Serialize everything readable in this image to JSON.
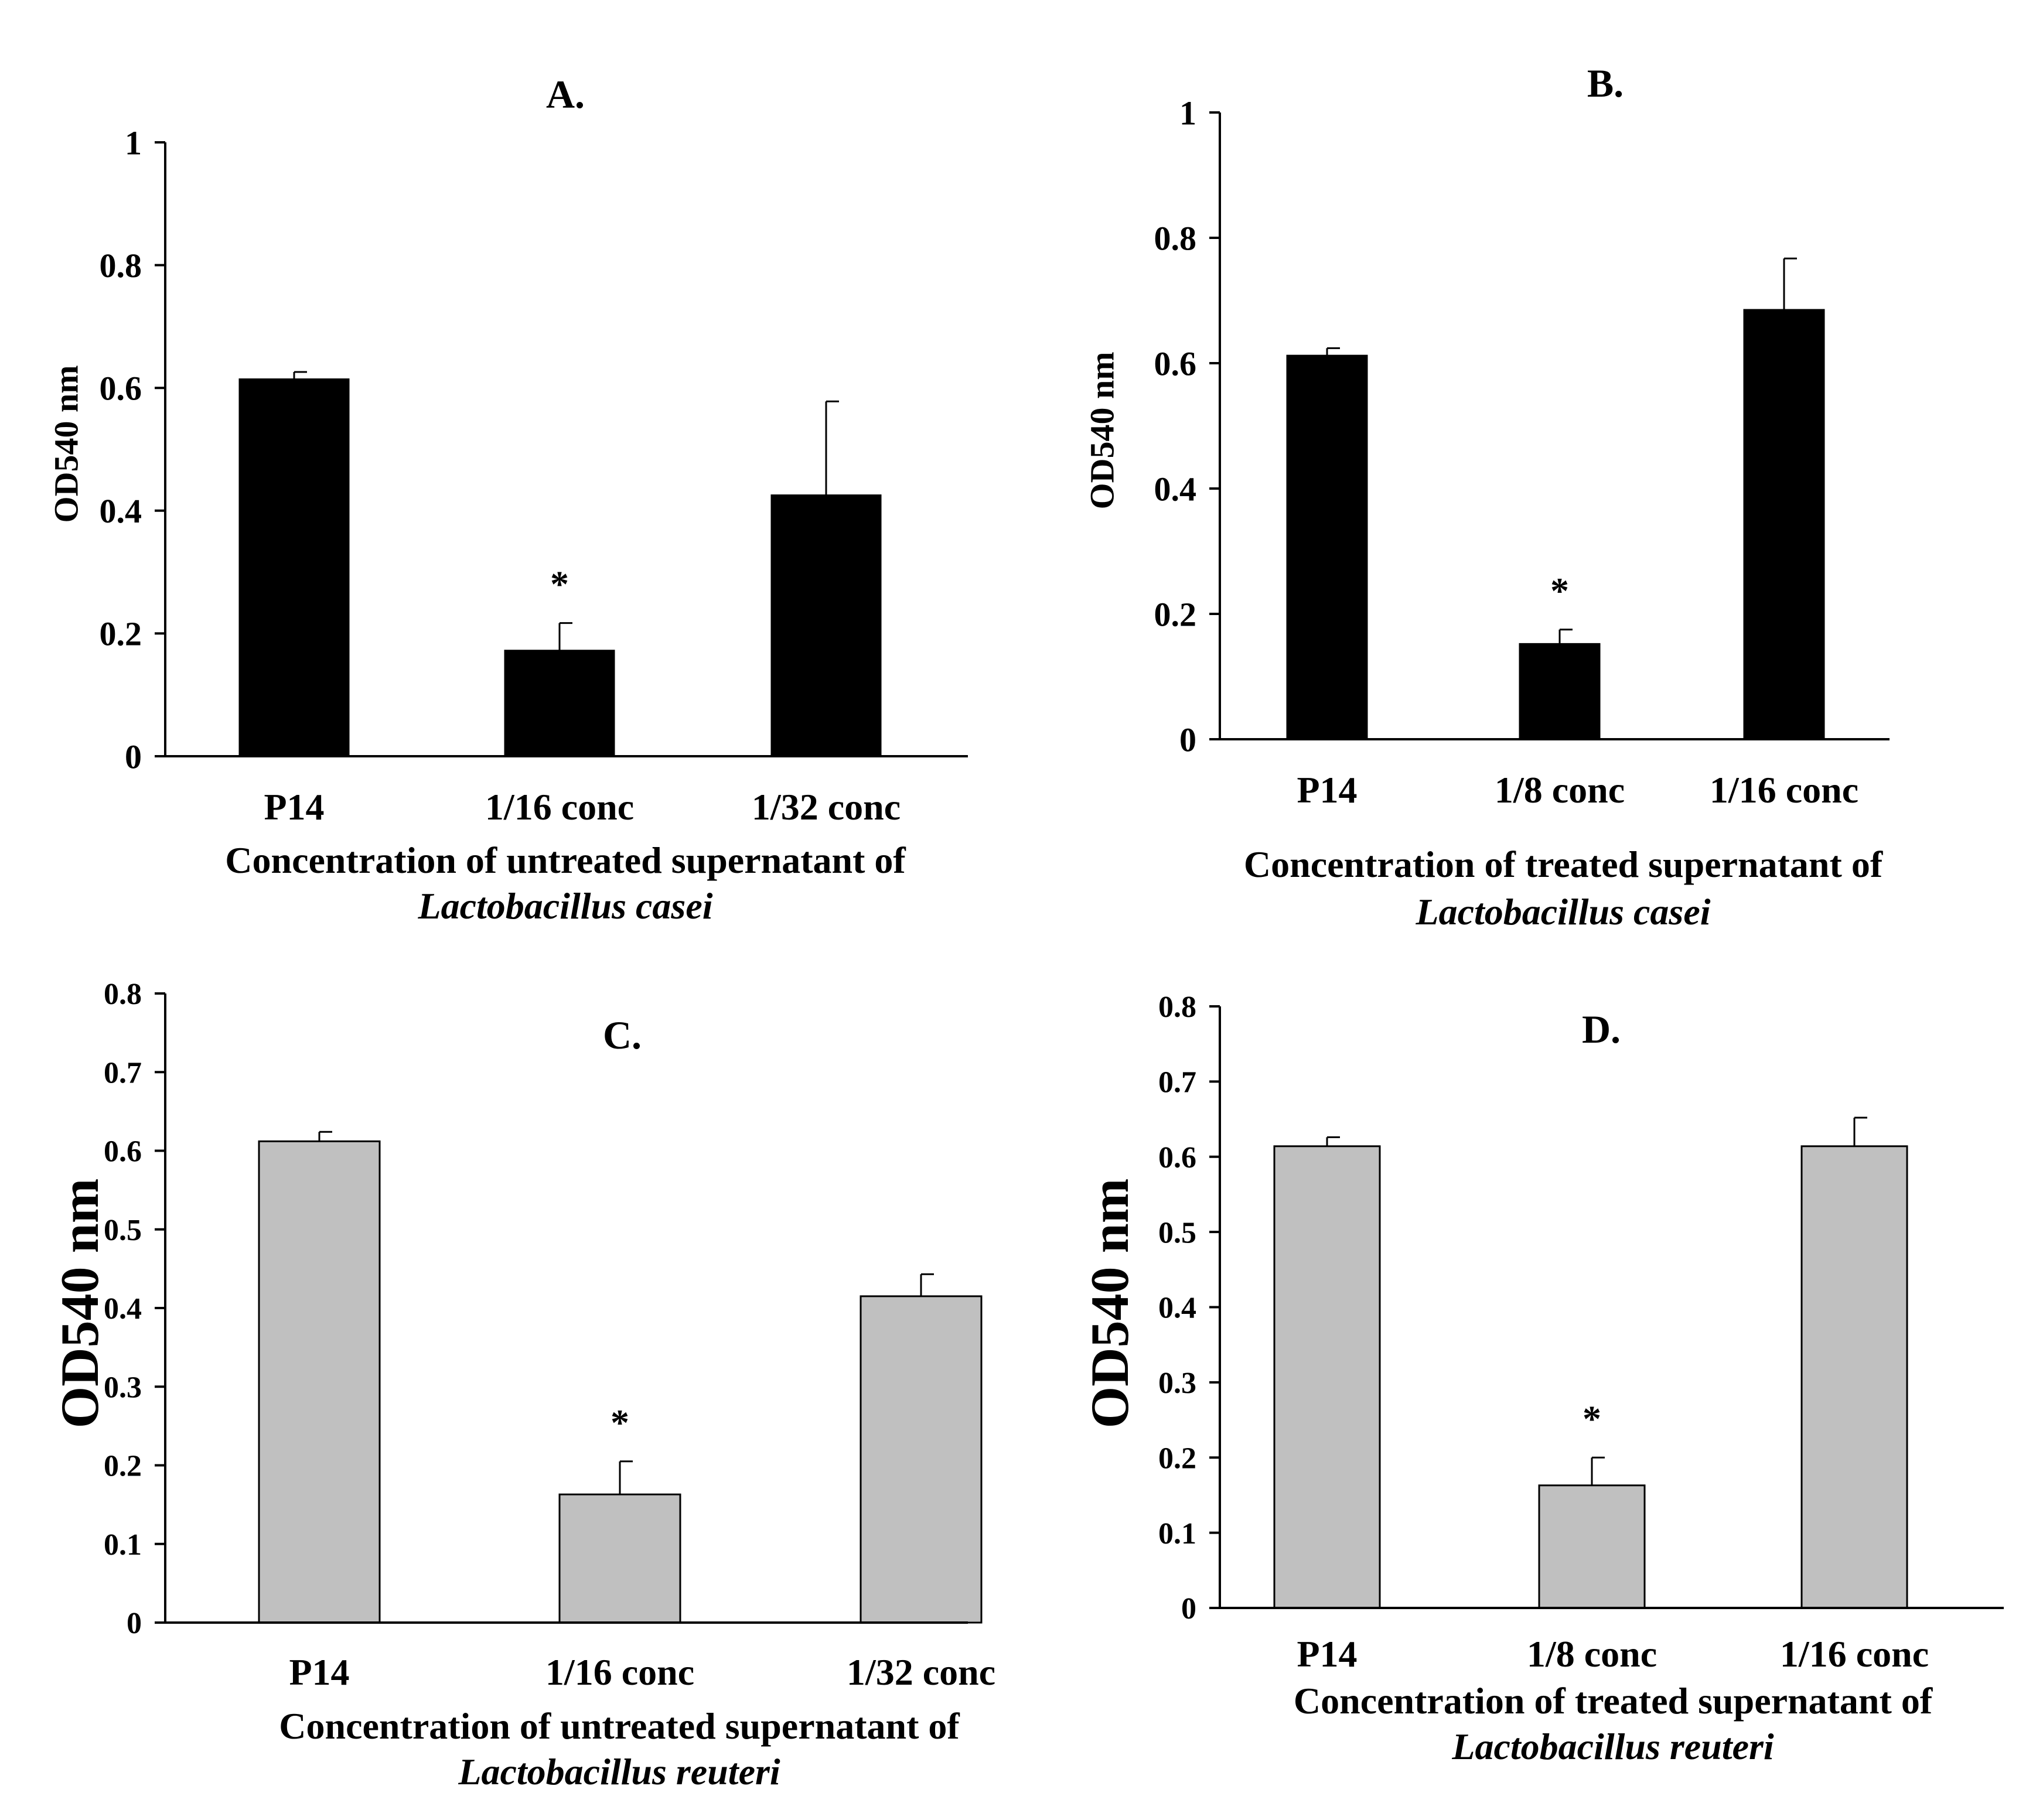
{
  "chart_data": [
    {
      "type": "bar",
      "panel": "A.",
      "title": "A.",
      "categories": [
        "P14",
        "1/16 conc",
        "1/32 conc"
      ],
      "values": [
        0.614,
        0.172,
        0.425
      ],
      "errors": [
        0.012,
        0.045,
        0.153
      ],
      "significance": [
        "",
        "*",
        ""
      ],
      "ylabel": "OD540 nm",
      "xlabel": "Concentration of untreated supernatant of",
      "xlabel_species": "Lactobacillus casei",
      "ylim": [
        0,
        1
      ],
      "yticks": [
        0,
        0.2,
        0.4,
        0.6,
        0.8,
        1
      ],
      "ytick_labels": [
        "0",
        "0.2",
        "0.4",
        "0.6",
        "0.8",
        "1"
      ],
      "bar_color": "#000000"
    },
    {
      "type": "bar",
      "panel": "B.",
      "title": "B.",
      "categories": [
        "P14",
        "1/8 conc",
        "1/16 conc"
      ],
      "values": [
        0.612,
        0.152,
        0.685
      ],
      "errors": [
        0.012,
        0.023,
        0.082
      ],
      "significance": [
        "",
        "*",
        ""
      ],
      "ylabel": "OD540 nm",
      "xlabel": "Concentration of treated supernatant of",
      "xlabel_species": "Lactobacillus casei",
      "ylim": [
        0,
        1
      ],
      "yticks": [
        0,
        0.2,
        0.4,
        0.6,
        0.8,
        1
      ],
      "ytick_labels": [
        "0",
        "0.2",
        "0.4",
        "0.6",
        "0.8",
        "1"
      ],
      "bar_color": "#000000"
    },
    {
      "type": "bar",
      "panel": "C.",
      "title": "C.",
      "categories": [
        "P14",
        "1/16 conc",
        "1/32 conc"
      ],
      "values": [
        0.612,
        0.163,
        0.415
      ],
      "errors": [
        0.012,
        0.042,
        0.028
      ],
      "significance": [
        "",
        "*",
        ""
      ],
      "ylabel": "OD540 nm",
      "xlabel": "Concentration of untreated supernatant of",
      "xlabel_species": "Lactobacillus reuteri",
      "ylim": [
        0,
        0.8
      ],
      "yticks": [
        0,
        0.1,
        0.2,
        0.3,
        0.4,
        0.5,
        0.6,
        0.7,
        0.8
      ],
      "ytick_labels": [
        "0",
        "0.1",
        "0.2",
        "0.3",
        "0.4",
        "0.5",
        "0.6",
        "0.7",
        "0.8"
      ],
      "bar_color": "#c0c0c0"
    },
    {
      "type": "bar",
      "panel": "D.",
      "title": "D.",
      "categories": [
        "P14",
        "1/8 conc",
        "1/16 conc"
      ],
      "values": [
        0.614,
        0.163,
        0.614
      ],
      "errors": [
        0.012,
        0.037,
        0.038
      ],
      "significance": [
        "",
        "*",
        ""
      ],
      "ylabel": "OD540 nm",
      "xlabel": "Concentration of treated supernatant of",
      "xlabel_species": "Lactobacillus reuteri",
      "ylim": [
        0,
        0.8
      ],
      "yticks": [
        0,
        0.1,
        0.2,
        0.3,
        0.4,
        0.5,
        0.6,
        0.7,
        0.8
      ],
      "ytick_labels": [
        "0",
        "0.1",
        "0.2",
        "0.3",
        "0.4",
        "0.5",
        "0.6",
        "0.7",
        "0.8"
      ],
      "bar_color": "#c0c0c0"
    }
  ]
}
